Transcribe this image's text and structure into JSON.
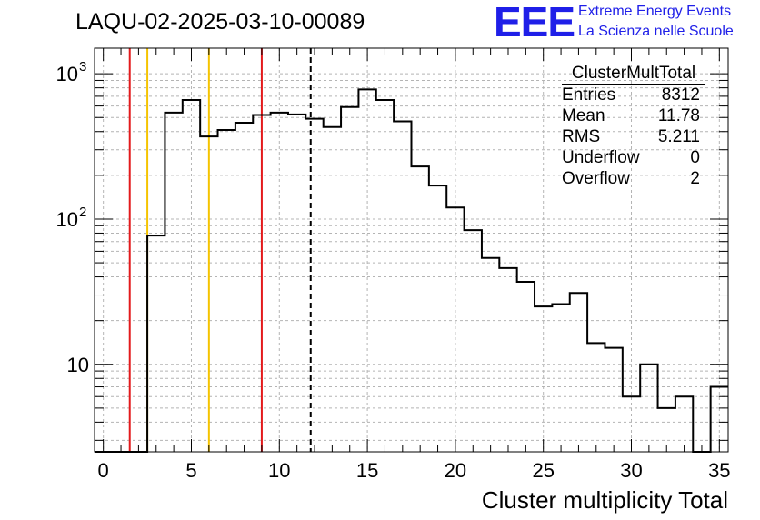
{
  "header": {
    "title": "LAQU-02-2025-03-10-00089",
    "logo_text": "EEE",
    "logo_line1": "Extreme Energy Events",
    "logo_line2": "La Scienza nelle Scuole"
  },
  "stats_box": {
    "name": "ClusterMultTotal",
    "rows": [
      {
        "label": "Entries",
        "value": "8312"
      },
      {
        "label": "Mean",
        "value": "11.78"
      },
      {
        "label": "RMS",
        "value": "5.211"
      },
      {
        "label": "Underflow",
        "value": "0"
      },
      {
        "label": "Overflow",
        "value": "2"
      }
    ]
  },
  "chart_data": {
    "type": "bar",
    "histogram": true,
    "title": "LAQU-02-2025-03-10-00089",
    "xlabel": "Cluster multiplicity Total",
    "ylabel": "",
    "xlim": [
      -0.5,
      35.5
    ],
    "ylim": [
      2.5,
      1500
    ],
    "log_y": true,
    "grid": true,
    "bin_width": 1,
    "x_ticks": [
      0,
      5,
      10,
      15,
      20,
      25,
      30,
      35
    ],
    "x_tick_labels": [
      "0",
      "5",
      "10",
      "15",
      "20",
      "25",
      "30",
      "35"
    ],
    "y_ticks": [
      10,
      100,
      1000
    ],
    "y_tick_labels": [
      "10",
      "10",
      "10"
    ],
    "y_tick_exponents": [
      "",
      "2",
      "3"
    ],
    "bins": [
      {
        "x": 0,
        "y": 0
      },
      {
        "x": 1,
        "y": 0
      },
      {
        "x": 2,
        "y": 0
      },
      {
        "x": 3,
        "y": 77
      },
      {
        "x": 4,
        "y": 540
      },
      {
        "x": 5,
        "y": 660
      },
      {
        "x": 6,
        "y": 370
      },
      {
        "x": 7,
        "y": 410
      },
      {
        "x": 8,
        "y": 460
      },
      {
        "x": 9,
        "y": 520
      },
      {
        "x": 10,
        "y": 540
      },
      {
        "x": 11,
        "y": 525
      },
      {
        "x": 12,
        "y": 490
      },
      {
        "x": 13,
        "y": 430
      },
      {
        "x": 14,
        "y": 590
      },
      {
        "x": 15,
        "y": 780
      },
      {
        "x": 16,
        "y": 660
      },
      {
        "x": 17,
        "y": 470
      },
      {
        "x": 18,
        "y": 230
      },
      {
        "x": 19,
        "y": 170
      },
      {
        "x": 20,
        "y": 120
      },
      {
        "x": 21,
        "y": 84
      },
      {
        "x": 22,
        "y": 54
      },
      {
        "x": 23,
        "y": 46
      },
      {
        "x": 24,
        "y": 37
      },
      {
        "x": 25,
        "y": 25
      },
      {
        "x": 26,
        "y": 26
      },
      {
        "x": 27,
        "y": 31
      },
      {
        "x": 28,
        "y": 14
      },
      {
        "x": 29,
        "y": 13
      },
      {
        "x": 30,
        "y": 6
      },
      {
        "x": 31,
        "y": 10
      },
      {
        "x": 32,
        "y": 5
      },
      {
        "x": 33,
        "y": 6
      },
      {
        "x": 34,
        "y": 0
      },
      {
        "x": 35,
        "y": 7
      }
    ],
    "vertical_lines": [
      {
        "x": 1.5,
        "color": "#e31a1c",
        "style": "solid"
      },
      {
        "x": 2.5,
        "color": "#f5c400",
        "style": "solid"
      },
      {
        "x": 6.0,
        "color": "#f5c400",
        "style": "solid"
      },
      {
        "x": 9.0,
        "color": "#e31a1c",
        "style": "solid"
      },
      {
        "x": 11.78,
        "color": "#000000",
        "style": "dashed"
      }
    ]
  }
}
